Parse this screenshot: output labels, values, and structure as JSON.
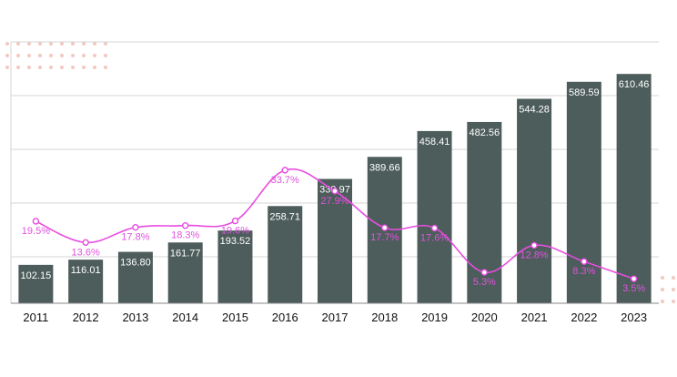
{
  "colors": {
    "bar": "#4d5d5b",
    "line": "#e74ce0",
    "line_label": "#de52de",
    "grid": "#d4d4d4",
    "dots": "#f2c8c0",
    "axis": "#888888"
  },
  "chart_data": {
    "type": "bar",
    "categories": [
      "2011",
      "2012",
      "2013",
      "2014",
      "2015",
      "2016",
      "2017",
      "2018",
      "2019",
      "2020",
      "2021",
      "2022",
      "2023"
    ],
    "series": [
      {
        "type": "bar",
        "values": [
          102.15,
          116.01,
          136.8,
          161.77,
          193.52,
          258.71,
          330.97,
          389.66,
          458.41,
          482.56,
          544.28,
          589.59,
          610.46
        ],
        "labels": [
          "102.15",
          "116.01",
          "136.80",
          "161.77",
          "193.52",
          "258.71",
          "330.97",
          "389.66",
          "458.41",
          "482.56",
          "544.28",
          "589.59",
          "610.46"
        ]
      },
      {
        "type": "line",
        "values": [
          19.5,
          13.6,
          17.8,
          18.3,
          19.6,
          33.7,
          27.9,
          17.7,
          17.6,
          5.3,
          12.8,
          8.3,
          3.5
        ],
        "labels": [
          "19.5%",
          "13.6%",
          "17.8%",
          "18.3%",
          "19.6%",
          "33.7%",
          "27.9%",
          "17.7%",
          "17.6%",
          "5.3%",
          "12.8%",
          "8.3%",
          "3.5%"
        ]
      }
    ],
    "grid": true,
    "legend": "none"
  }
}
